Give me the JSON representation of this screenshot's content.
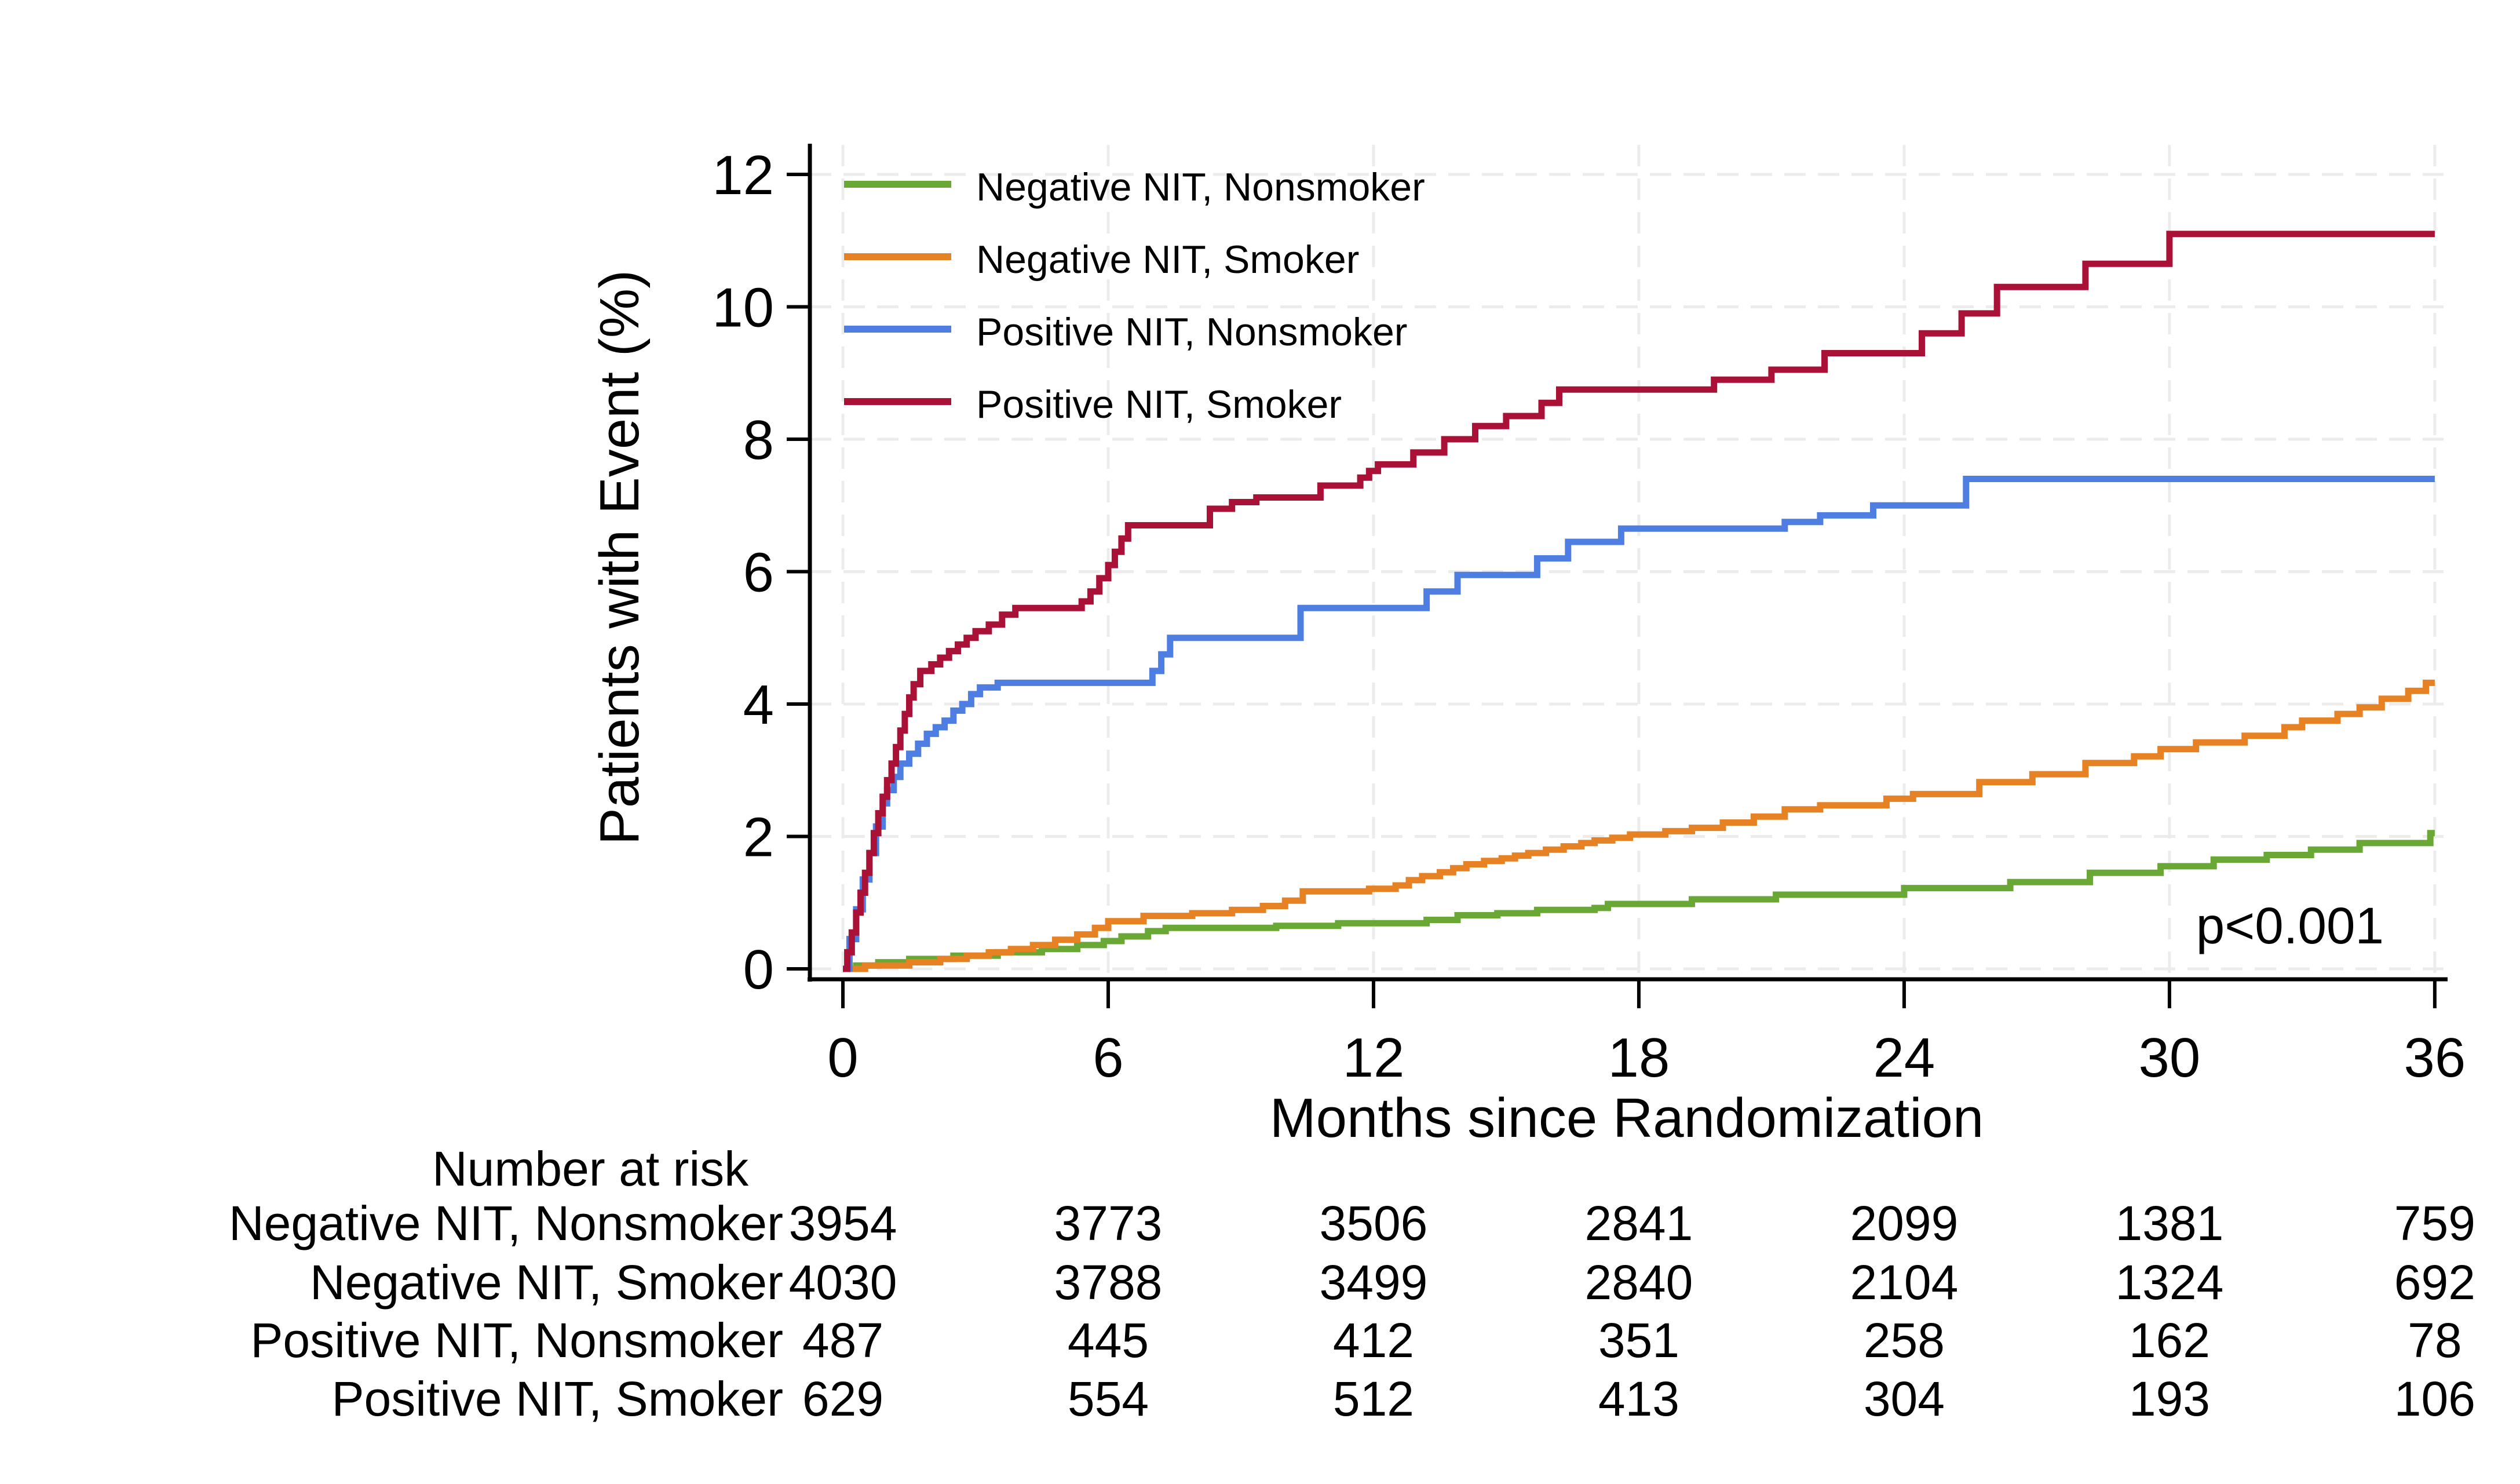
{
  "figure": {
    "y_title": "Patients with Event (%)",
    "x_title": "Months since Randomization",
    "p_annotation": "p<0.001",
    "background": "#ffffff",
    "grid_color": "#ececec",
    "axis_color": "#000000"
  },
  "chart_data": {
    "type": "line",
    "step": "after",
    "title": "",
    "xlabel": "Months since Randomization",
    "ylabel": "Patients with Event (%)",
    "xlim": [
      0,
      36
    ],
    "ylim": [
      0,
      12
    ],
    "x_ticks": [
      0,
      6,
      12,
      18,
      24,
      30,
      36
    ],
    "y_ticks": [
      0,
      2,
      4,
      6,
      8,
      10,
      12
    ],
    "grid": "dashed",
    "legend_position": "top-left-inside",
    "annotation": "p<0.001",
    "series": [
      {
        "name": "Negative NIT, Nonsmoker",
        "color": "#6AA835",
        "points": [
          [
            0,
            0
          ],
          [
            0.3,
            0.05
          ],
          [
            0.8,
            0.1
          ],
          [
            1.5,
            0.15
          ],
          [
            2.5,
            0.2
          ],
          [
            3.5,
            0.25
          ],
          [
            4.5,
            0.3
          ],
          [
            5.3,
            0.36
          ],
          [
            5.9,
            0.42
          ],
          [
            6.3,
            0.49
          ],
          [
            6.9,
            0.57
          ],
          [
            7.3,
            0.62
          ],
          [
            9.8,
            0.65
          ],
          [
            11.2,
            0.69
          ],
          [
            13.2,
            0.74
          ],
          [
            13.9,
            0.81
          ],
          [
            14.8,
            0.84
          ],
          [
            15.7,
            0.89
          ],
          [
            17.0,
            0.92
          ],
          [
            17.3,
            0.98
          ],
          [
            19.2,
            1.05
          ],
          [
            21.1,
            1.12
          ],
          [
            24.0,
            1.22
          ],
          [
            26.4,
            1.31
          ],
          [
            28.2,
            1.45
          ],
          [
            29.8,
            1.55
          ],
          [
            31.0,
            1.65
          ],
          [
            32.2,
            1.72
          ],
          [
            33.2,
            1.8
          ],
          [
            34.3,
            1.9
          ],
          [
            35.9,
            2.05
          ],
          [
            36,
            2.05
          ]
        ]
      },
      {
        "name": "Negative NIT, Smoker",
        "color": "#E68223",
        "points": [
          [
            0,
            0
          ],
          [
            0.5,
            0.05
          ],
          [
            1.5,
            0.1
          ],
          [
            2.2,
            0.15
          ],
          [
            2.8,
            0.2
          ],
          [
            3.3,
            0.25
          ],
          [
            3.8,
            0.3
          ],
          [
            4.3,
            0.36
          ],
          [
            4.8,
            0.44
          ],
          [
            5.3,
            0.52
          ],
          [
            5.7,
            0.62
          ],
          [
            6.0,
            0.72
          ],
          [
            6.8,
            0.8
          ],
          [
            7.9,
            0.84
          ],
          [
            8.8,
            0.89
          ],
          [
            9.5,
            0.95
          ],
          [
            10.0,
            1.03
          ],
          [
            10.4,
            1.17
          ],
          [
            11.9,
            1.21
          ],
          [
            12.5,
            1.26
          ],
          [
            12.8,
            1.34
          ],
          [
            13.1,
            1.4
          ],
          [
            13.5,
            1.46
          ],
          [
            13.8,
            1.52
          ],
          [
            14.1,
            1.58
          ],
          [
            14.5,
            1.63
          ],
          [
            14.9,
            1.67
          ],
          [
            15.2,
            1.71
          ],
          [
            15.5,
            1.75
          ],
          [
            15.9,
            1.8
          ],
          [
            16.3,
            1.85
          ],
          [
            16.7,
            1.9
          ],
          [
            17.0,
            1.94
          ],
          [
            17.4,
            1.98
          ],
          [
            17.8,
            2.03
          ],
          [
            18.6,
            2.08
          ],
          [
            19.2,
            2.13
          ],
          [
            19.9,
            2.21
          ],
          [
            20.6,
            2.3
          ],
          [
            21.3,
            2.41
          ],
          [
            22.1,
            2.47
          ],
          [
            23.6,
            2.57
          ],
          [
            24.2,
            2.64
          ],
          [
            25.7,
            2.82
          ],
          [
            26.9,
            2.94
          ],
          [
            28.1,
            3.11
          ],
          [
            29.2,
            3.21
          ],
          [
            29.8,
            3.32
          ],
          [
            30.6,
            3.42
          ],
          [
            31.7,
            3.52
          ],
          [
            32.6,
            3.65
          ],
          [
            33.0,
            3.75
          ],
          [
            33.8,
            3.85
          ],
          [
            34.3,
            3.95
          ],
          [
            34.8,
            4.08
          ],
          [
            35.4,
            4.2
          ],
          [
            35.8,
            4.32
          ],
          [
            36,
            4.32
          ]
        ]
      },
      {
        "name": "Positive NIT, Nonsmoker",
        "color": "#4F7EE3",
        "points": [
          [
            0,
            0
          ],
          [
            0.15,
            0.45
          ],
          [
            0.3,
            0.9
          ],
          [
            0.45,
            1.35
          ],
          [
            0.6,
            1.75
          ],
          [
            0.75,
            2.15
          ],
          [
            0.9,
            2.5
          ],
          [
            1.0,
            2.7
          ],
          [
            1.15,
            2.9
          ],
          [
            1.3,
            3.1
          ],
          [
            1.5,
            3.25
          ],
          [
            1.7,
            3.4
          ],
          [
            1.9,
            3.55
          ],
          [
            2.1,
            3.65
          ],
          [
            2.3,
            3.75
          ],
          [
            2.5,
            3.9
          ],
          [
            2.7,
            4.0
          ],
          [
            2.9,
            4.15
          ],
          [
            3.1,
            4.25
          ],
          [
            3.5,
            4.32
          ],
          [
            7.0,
            4.5
          ],
          [
            7.2,
            4.75
          ],
          [
            7.4,
            5.0
          ],
          [
            10.35,
            5.45
          ],
          [
            13.2,
            5.7
          ],
          [
            13.9,
            5.95
          ],
          [
            15.7,
            6.2
          ],
          [
            16.4,
            6.45
          ],
          [
            17.6,
            6.65
          ],
          [
            21.3,
            6.75
          ],
          [
            22.1,
            6.85
          ],
          [
            23.3,
            7.0
          ],
          [
            25.4,
            7.4
          ],
          [
            36,
            7.4
          ]
        ]
      },
      {
        "name": "Positive NIT, Smoker",
        "color": "#AA1137",
        "points": [
          [
            0,
            0
          ],
          [
            0.1,
            0.25
          ],
          [
            0.2,
            0.55
          ],
          [
            0.3,
            0.85
          ],
          [
            0.4,
            1.15
          ],
          [
            0.5,
            1.45
          ],
          [
            0.6,
            1.75
          ],
          [
            0.7,
            2.05
          ],
          [
            0.8,
            2.35
          ],
          [
            0.9,
            2.6
          ],
          [
            1.0,
            2.85
          ],
          [
            1.1,
            3.1
          ],
          [
            1.2,
            3.35
          ],
          [
            1.3,
            3.6
          ],
          [
            1.4,
            3.85
          ],
          [
            1.5,
            4.1
          ],
          [
            1.6,
            4.3
          ],
          [
            1.75,
            4.5
          ],
          [
            2.0,
            4.6
          ],
          [
            2.2,
            4.7
          ],
          [
            2.4,
            4.8
          ],
          [
            2.6,
            4.9
          ],
          [
            2.8,
            5.0
          ],
          [
            3.0,
            5.1
          ],
          [
            3.3,
            5.2
          ],
          [
            3.6,
            5.35
          ],
          [
            3.9,
            5.45
          ],
          [
            5.4,
            5.55
          ],
          [
            5.6,
            5.7
          ],
          [
            5.8,
            5.9
          ],
          [
            6.0,
            6.1
          ],
          [
            6.15,
            6.3
          ],
          [
            6.3,
            6.5
          ],
          [
            6.45,
            6.7
          ],
          [
            8.3,
            6.95
          ],
          [
            8.8,
            7.05
          ],
          [
            9.35,
            7.12
          ],
          [
            10.8,
            7.3
          ],
          [
            11.7,
            7.42
          ],
          [
            11.9,
            7.52
          ],
          [
            12.1,
            7.62
          ],
          [
            12.9,
            7.8
          ],
          [
            13.6,
            8.0
          ],
          [
            14.3,
            8.2
          ],
          [
            15.0,
            8.35
          ],
          [
            15.8,
            8.55
          ],
          [
            16.2,
            8.75
          ],
          [
            19.7,
            8.9
          ],
          [
            21.0,
            9.05
          ],
          [
            22.2,
            9.3
          ],
          [
            24.4,
            9.6
          ],
          [
            25.3,
            9.9
          ],
          [
            26.1,
            10.3
          ],
          [
            28.1,
            10.65
          ],
          [
            30.0,
            11.1
          ],
          [
            36,
            11.1
          ]
        ]
      }
    ]
  },
  "risk_table": {
    "title": "Number at risk",
    "time_points": [
      0,
      6,
      12,
      18,
      24,
      30,
      36
    ],
    "rows": [
      {
        "label": "Negative NIT, Nonsmoker",
        "counts": [
          "3954",
          "3773",
          "3506",
          "2841",
          "2099",
          "1381",
          "759"
        ]
      },
      {
        "label": "Negative NIT, Smoker",
        "counts": [
          "4030",
          "3788",
          "3499",
          "2840",
          "2104",
          "1324",
          "692"
        ]
      },
      {
        "label": "Positive NIT, Nonsmoker",
        "counts": [
          "487",
          "445",
          "412",
          "351",
          "258",
          "162",
          "78"
        ]
      },
      {
        "label": "Positive NIT, Smoker",
        "counts": [
          "629",
          "554",
          "512",
          "413",
          "304",
          "193",
          "106"
        ]
      }
    ]
  }
}
